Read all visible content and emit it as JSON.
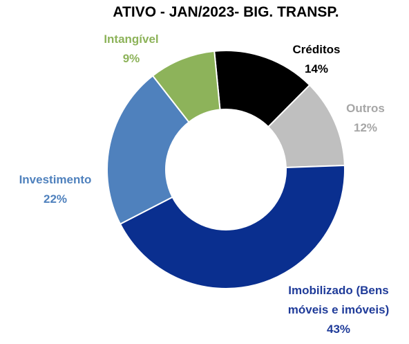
{
  "chart_data": {
    "type": "donut",
    "title": "ATIVO - JAN/2023- BIG. TRANSP.",
    "categories": [
      "Créditos",
      "Outros",
      "Imobilizado (Bens móveis e imóveis)",
      "Investimento",
      "Intangível"
    ],
    "values": [
      14,
      12,
      43,
      22,
      9
    ],
    "value_labels": [
      "14%",
      "12%",
      "43%",
      "22%",
      "9%"
    ],
    "colors": [
      "#000000",
      "#bfbfbf",
      "#0a2f8f",
      "#4f81bd",
      "#8db35a"
    ],
    "label_colors": [
      "#000000",
      "#a6a6a6",
      "#1f3b99",
      "#4f81bd",
      "#8db35a"
    ]
  }
}
